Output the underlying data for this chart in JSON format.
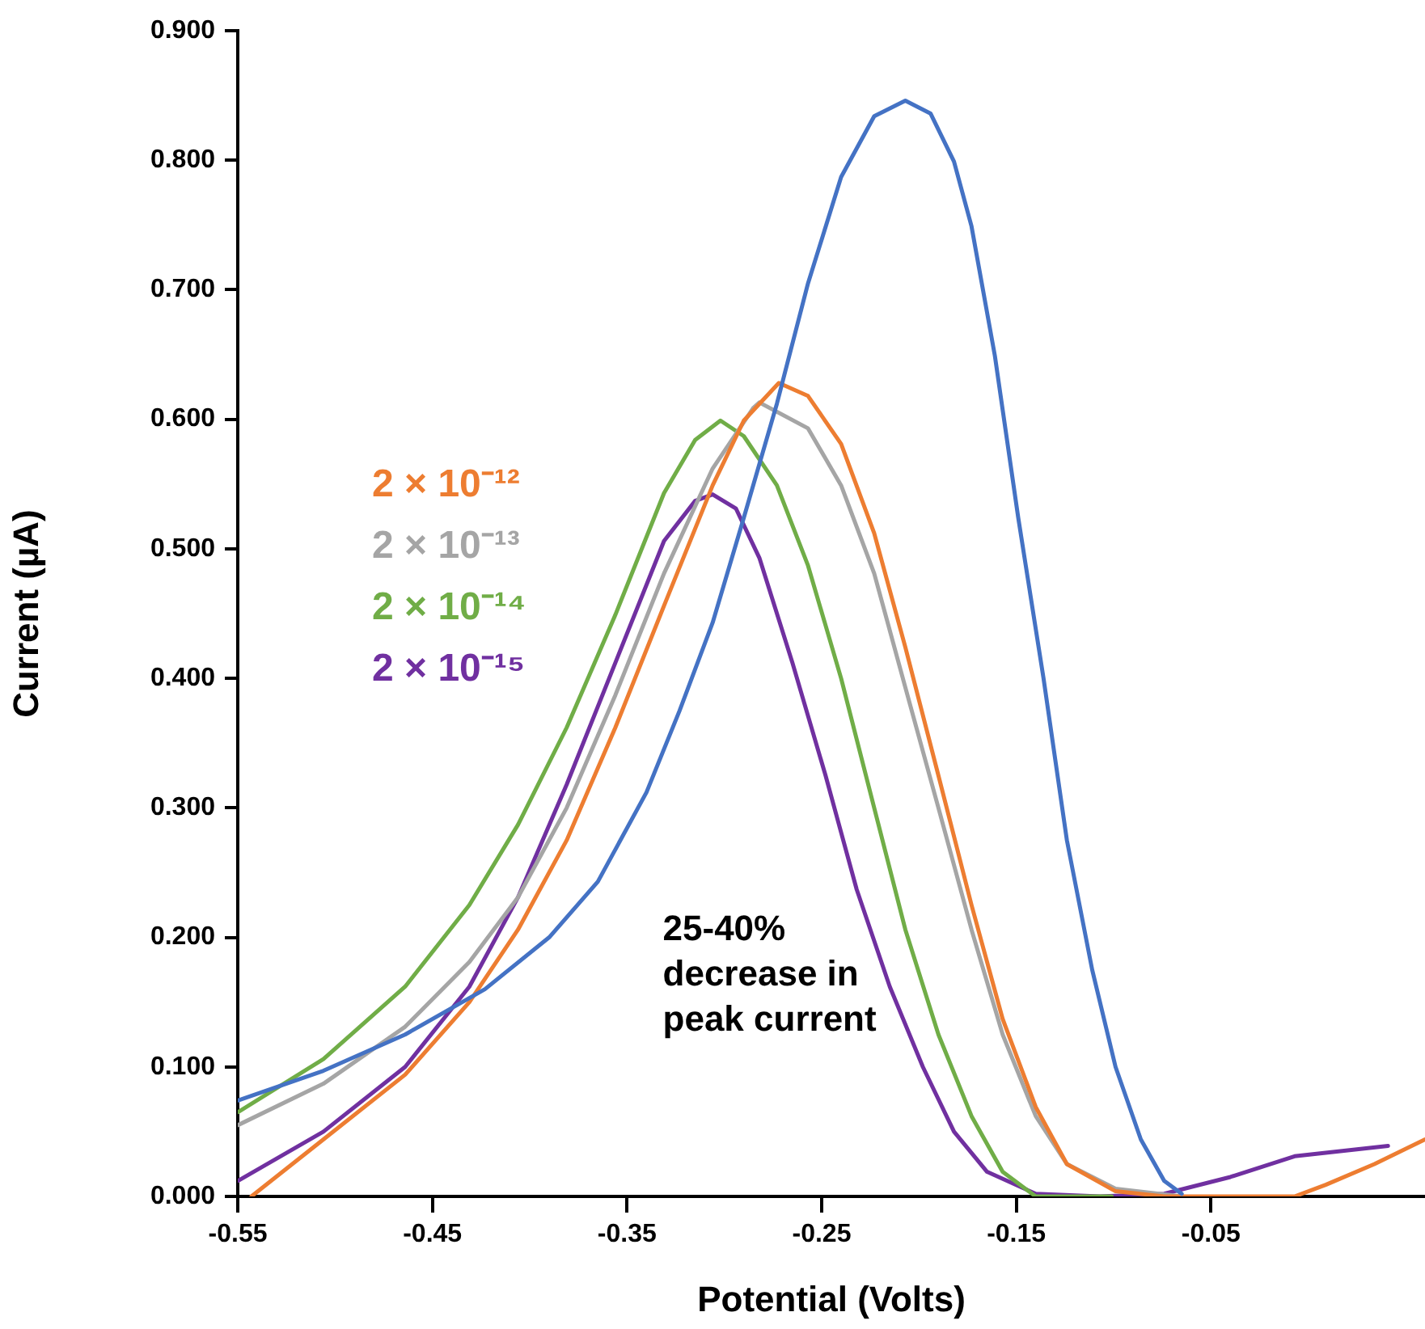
{
  "chart_data": {
    "type": "line",
    "xlabel": "Potential (Volts)",
    "ylabel": "Current (µA)",
    "legend": "left",
    "grid": false,
    "marker": "none",
    "xlim": [
      -0.55,
      0.06
    ],
    "xticks": [
      -0.55,
      -0.45,
      -0.35,
      -0.25,
      -0.15,
      -0.05
    ],
    "ylim": [
      0,
      0.9
    ],
    "yticks": [
      {
        "value": 0,
        "label": "0.000"
      },
      {
        "value": 0.1,
        "label": "0.100"
      },
      {
        "value": 0.2,
        "label": "0.200"
      },
      {
        "value": 0.3,
        "label": "0.300"
      },
      {
        "value": 0.4,
        "label": "0.400"
      },
      {
        "value": 0.5,
        "label": "0.500"
      },
      {
        "value": 0.6,
        "label": "0.600"
      },
      {
        "value": 0.7,
        "label": "0.700"
      },
      {
        "value": 0.8,
        "label": "0.800"
      },
      {
        "value": 0.9,
        "label": "0.900"
      }
    ],
    "annotations": [
      "25-40%\ndecrease in\npeak current"
    ],
    "series": [
      {
        "color": "#4472c4",
        "x": [
          -0.55,
          -0.506,
          -0.464,
          -0.423,
          -0.39,
          -0.365,
          -0.34,
          -0.323,
          -0.306,
          -0.29,
          -0.273,
          -0.257,
          -0.24,
          -0.223,
          -0.207,
          -0.194,
          -0.182,
          -0.173,
          -0.161,
          -0.149,
          -0.136,
          -0.124,
          -0.111,
          -0.099,
          -0.086,
          -0.074,
          -0.065
        ],
        "values": [
          0.074,
          0.097,
          0.125,
          0.16,
          0.2,
          0.243,
          0.312,
          0.375,
          0.443,
          0.524,
          0.612,
          0.705,
          0.787,
          0.834,
          0.846,
          0.836,
          0.799,
          0.749,
          0.649,
          0.524,
          0.4,
          0.275,
          0.175,
          0.1,
          0.044,
          0.012,
          0.002
        ]
      },
      {
        "name": "2 × 10⁻¹²",
        "color": "#ed7d31",
        "x": [
          -0.543,
          -0.506,
          -0.464,
          -0.431,
          -0.406,
          -0.381,
          -0.356,
          -0.331,
          -0.306,
          -0.29,
          -0.272,
          -0.257,
          -0.24,
          -0.223,
          -0.207,
          -0.19,
          -0.173,
          -0.157,
          -0.14,
          -0.124,
          -0.099,
          -0.074,
          -0.007,
          0.009,
          0.034,
          0.06
        ],
        "values": [
          0,
          0.044,
          0.094,
          0.15,
          0.206,
          0.275,
          0.362,
          0.456,
          0.549,
          0.599,
          0.628,
          0.618,
          0.581,
          0.512,
          0.424,
          0.325,
          0.225,
          0.137,
          0.069,
          0.025,
          0.004,
          0,
          0,
          0.009,
          0.025,
          0.044
        ]
      },
      {
        "name": "2 × 10⁻¹³",
        "color": "#a5a5a5",
        "x": [
          -0.55,
          -0.506,
          -0.464,
          -0.431,
          -0.406,
          -0.381,
          -0.356,
          -0.331,
          -0.306,
          -0.285,
          -0.282,
          -0.257,
          -0.24,
          -0.223,
          -0.207,
          -0.19,
          -0.173,
          -0.157,
          -0.14,
          -0.124,
          -0.099,
          -0.065
        ],
        "values": [
          0.055,
          0.087,
          0.131,
          0.181,
          0.231,
          0.3,
          0.387,
          0.481,
          0.562,
          0.609,
          0.613,
          0.593,
          0.549,
          0.481,
          0.393,
          0.3,
          0.206,
          0.125,
          0.062,
          0.025,
          0.006,
          0
        ]
      },
      {
        "name": "2 × 10⁻¹⁴",
        "color": "#70ad47",
        "x": [
          -0.55,
          -0.506,
          -0.464,
          -0.431,
          -0.406,
          -0.381,
          -0.356,
          -0.331,
          -0.315,
          -0.302,
          -0.29,
          -0.273,
          -0.257,
          -0.24,
          -0.223,
          -0.207,
          -0.19,
          -0.173,
          -0.157,
          -0.14,
          -0.101
        ],
        "values": [
          0.065,
          0.106,
          0.162,
          0.225,
          0.287,
          0.362,
          0.449,
          0.543,
          0.584,
          0.599,
          0.587,
          0.549,
          0.487,
          0.4,
          0.3,
          0.206,
          0.125,
          0.062,
          0.019,
          0,
          0
        ]
      },
      {
        "name": "2 × 10⁻¹⁵",
        "color": "#7030a0",
        "x": [
          -0.55,
          -0.506,
          -0.464,
          -0.431,
          -0.406,
          -0.381,
          -0.356,
          -0.331,
          -0.315,
          -0.306,
          -0.294,
          -0.282,
          -0.265,
          -0.248,
          -0.232,
          -0.215,
          -0.198,
          -0.182,
          -0.165,
          -0.14,
          -0.107,
          -0.074,
          -0.04,
          -0.007,
          0.041
        ],
        "values": [
          0.012,
          0.05,
          0.1,
          0.162,
          0.231,
          0.318,
          0.412,
          0.506,
          0.537,
          0.542,
          0.531,
          0.493,
          0.412,
          0.325,
          0.237,
          0.162,
          0.1,
          0.05,
          0.019,
          0.002,
          0,
          0.002,
          0.015,
          0.031,
          0.039
        ]
      }
    ]
  }
}
